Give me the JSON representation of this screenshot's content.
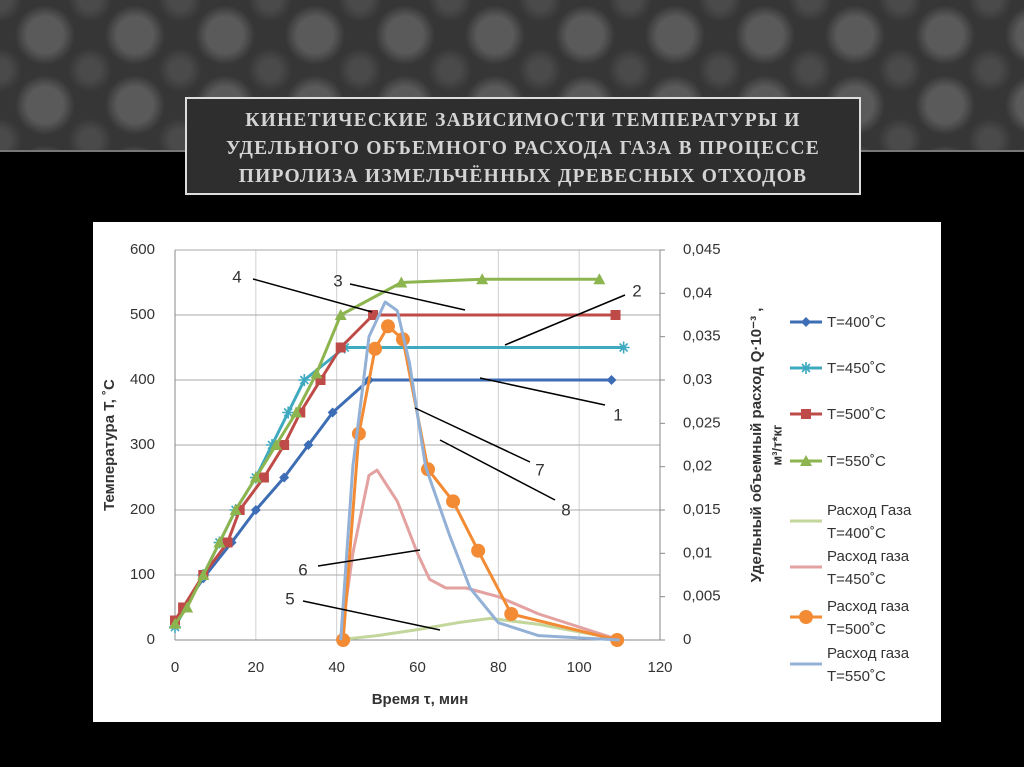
{
  "chart_data": {
    "type": "line",
    "title": "КИНЕТИЧЕСКИЕ ЗАВИСИМОСТИ ТЕМПЕРАТУРЫ И УДЕЛЬНОГО ОБЪЕМНОГО РАСХОДА ГАЗА В ПРОЦЕССЕ ПИРОЛИЗА ИЗМЕЛЬЧЁННЫХ ДРЕВЕСНЫХ ОТХОДОВ",
    "x_label": "Время τ, мин",
    "y_label": "Температура T, ˚C",
    "y2_label": [
      "Удельный объемный расход Q·10⁻³ ,",
      "м³/т*кг"
    ],
    "xlim": [
      0,
      120
    ],
    "xticks": [
      0,
      20,
      40,
      60,
      80,
      100,
      120
    ],
    "ylim": [
      0,
      600
    ],
    "yticks": [
      0,
      100,
      200,
      300,
      400,
      500,
      600
    ],
    "y2lim": [
      0,
      0.045
    ],
    "y2ticks": [
      0,
      {
        "value": 0.005,
        "label": "0,005"
      },
      {
        "value": 0.01,
        "label": "0,01"
      },
      {
        "value": 0.015,
        "label": "0,015"
      },
      {
        "value": 0.02,
        "label": "0,02"
      },
      {
        "value": 0.025,
        "label": "0,025"
      },
      {
        "value": 0.03,
        "label": "0,03"
      },
      {
        "value": 0.035,
        "label": "0,035"
      },
      {
        "value": 0.04,
        "label": "0,04"
      },
      {
        "value": 0.045,
        "label": "0,045"
      }
    ],
    "grid": true,
    "legend": "right",
    "annotations": [
      "1",
      "2",
      "3",
      "4",
      "5",
      "6",
      "7",
      "8"
    ],
    "series": [
      {
        "name": "T=400˚C",
        "color": "#3d6db5",
        "marker": "diamond",
        "x": [
          0,
          7,
          14,
          20,
          27,
          33,
          39,
          48,
          108
        ],
        "values": [
          30,
          95,
          150,
          200,
          250,
          300,
          350,
          400,
          400
        ]
      },
      {
        "name": "T=450˚C",
        "color": "#3fa9c0",
        "marker": "asterisk",
        "x": [
          0,
          7,
          11,
          15,
          20,
          24,
          28,
          32,
          42,
          111
        ],
        "values": [
          20,
          100,
          150,
          200,
          250,
          300,
          350,
          400,
          450,
          450
        ]
      },
      {
        "name": "T=500˚C",
        "color": "#be4b48",
        "marker": "square",
        "x": [
          0,
          2,
          7,
          13,
          16,
          22,
          27,
          31,
          36,
          41,
          49,
          109
        ],
        "values": [
          30,
          50,
          100,
          150,
          200,
          250,
          300,
          350,
          400,
          450,
          500,
          500
        ]
      },
      {
        "name": "T=550˚C",
        "color": "#8db54f",
        "marker": "triangle",
        "x": [
          0,
          3,
          7,
          11,
          15,
          20,
          25,
          30,
          35,
          41,
          56,
          76,
          105
        ],
        "values": [
          25,
          50,
          100,
          150,
          200,
          250,
          300,
          350,
          410,
          500,
          550,
          555,
          555
        ]
      },
      {
        "name": "Расход Газа T=400˚C",
        "color": "#c3d69b",
        "axis": "y2",
        "x": [
          40,
          50,
          60,
          70,
          78,
          90,
          105
        ],
        "values": [
          0,
          0.0005,
          0.0012,
          0.002,
          0.0025,
          0.0018,
          0.0005
        ]
      },
      {
        "name": "Расход газа T=450˚C",
        "color": "#e3a1a0",
        "axis": "y2",
        "x": [
          41,
          44,
          48,
          50,
          55,
          60,
          63,
          67,
          72,
          80,
          90,
          110
        ],
        "values": [
          0,
          0.01,
          0.019,
          0.0196,
          0.016,
          0.01,
          0.007,
          0.006,
          0.006,
          0.005,
          0.003,
          0
        ]
      },
      {
        "name": "Расход газа T=500˚C",
        "color": "#f28b34",
        "marker": "circle",
        "axis": "y2",
        "x": [
          41.6,
          45.5,
          49.5,
          52.7,
          56.4,
          62.6,
          68.8,
          75,
          83.2,
          109.4
        ],
        "values": [
          0,
          0.0238,
          0.0336,
          0.0362,
          0.0347,
          0.0197,
          0.016,
          0.0103,
          0.003,
          0
        ]
      },
      {
        "name": "Расход газа T=550˚C",
        "color": "#93b1d6",
        "axis": "y2",
        "x": [
          41,
          44,
          48,
          52,
          55,
          58,
          62,
          68,
          73,
          80,
          90,
          110
        ],
        "values": [
          0,
          0.02,
          0.035,
          0.039,
          0.038,
          0.032,
          0.02,
          0.012,
          0.006,
          0.002,
          0.0005,
          0
        ]
      }
    ]
  }
}
